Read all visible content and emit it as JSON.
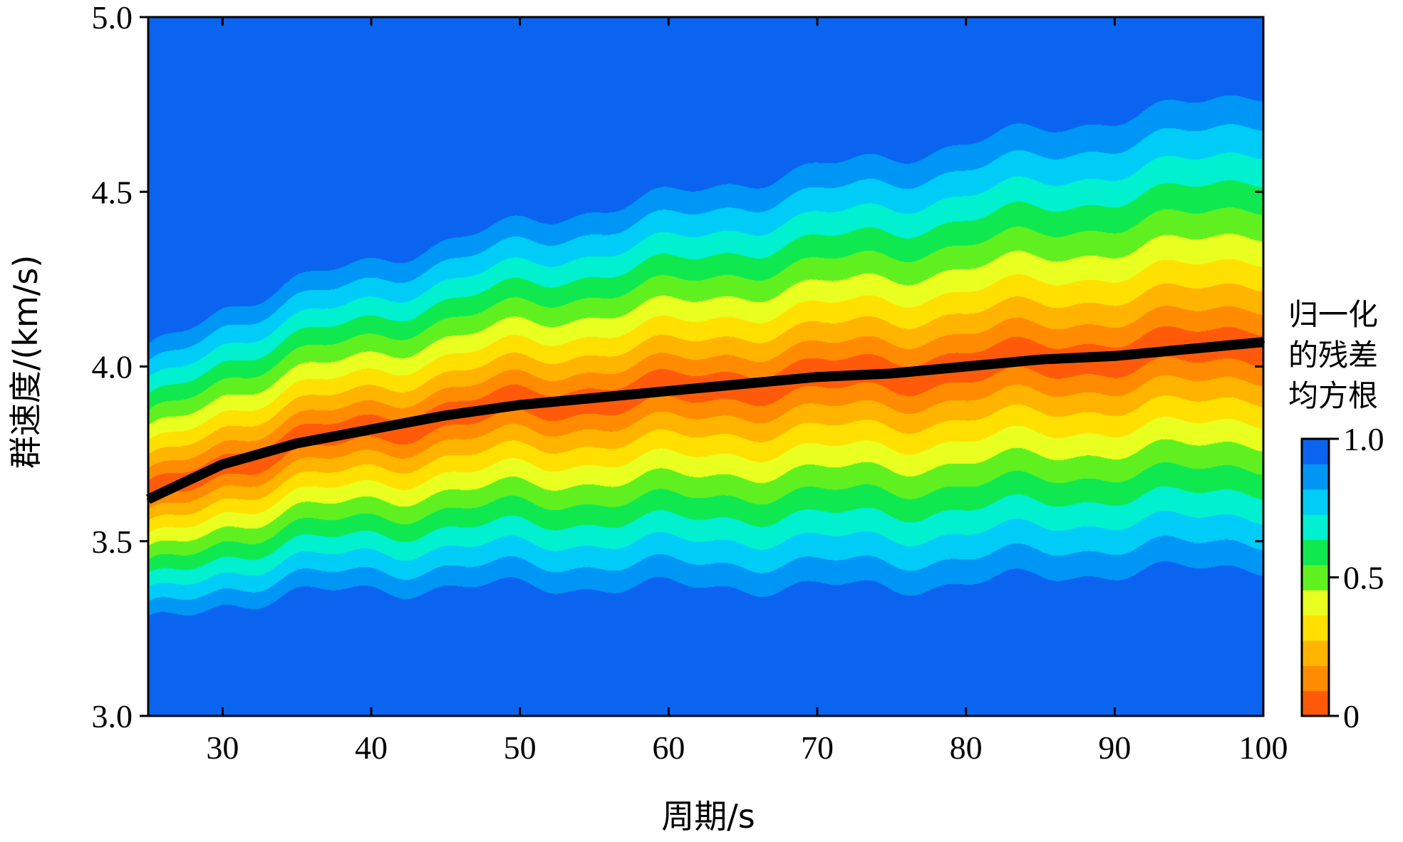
{
  "chart_data": {
    "type": "heatmap",
    "title": "",
    "xlabel": "周期/s",
    "ylabel": "群速度/(km/s)",
    "xlim": [
      25,
      100
    ],
    "ylim": [
      3.0,
      5.0
    ],
    "xticks": [
      30,
      40,
      50,
      60,
      70,
      80,
      90,
      100
    ],
    "xtick_labels": [
      "30",
      "40",
      "50",
      "60",
      "70",
      "80",
      "90",
      "100"
    ],
    "yticks": [
      3.0,
      3.5,
      4.0,
      4.5,
      5.0
    ],
    "ytick_labels": [
      "3.0",
      "3.5",
      "4.0",
      "4.5",
      "5.0"
    ],
    "colorbar": {
      "title_lines": [
        "归一化",
        "的残差",
        "均方根"
      ],
      "ticks": [
        0,
        0.5,
        1.0
      ],
      "tick_labels": [
        "0",
        "0.5",
        "1.0"
      ],
      "levels": 10,
      "colors": [
        "#ff5a0a",
        "#ff8c00",
        "#ffb400",
        "#ffe000",
        "#e8ff20",
        "#60f020",
        "#10e850",
        "#00f0d0",
        "#00ccf8",
        "#0096f5",
        "#0a64f0"
      ]
    },
    "dispersion_curve": {
      "period_s": [
        25,
        30,
        35,
        40,
        45,
        50,
        55,
        60,
        65,
        70,
        75,
        80,
        85,
        90,
        95,
        100
      ],
      "group_velocity_kms": [
        3.62,
        3.72,
        3.78,
        3.82,
        3.86,
        3.89,
        3.91,
        3.93,
        3.95,
        3.97,
        3.98,
        4.0,
        4.02,
        4.03,
        4.05,
        4.07
      ],
      "color": "#000000"
    },
    "misfit_field": {
      "description_of_axes": "x: period (s), y: group velocity (km/s), value: normalized RMS residual 0-1",
      "min_center_follows_dispersion_curve": true,
      "upper_half_width_kms": {
        "period_s": [
          25,
          30,
          40,
          50,
          60,
          70,
          80,
          90,
          100
        ],
        "value": [
          0.42,
          0.45,
          0.48,
          0.52,
          0.56,
          0.6,
          0.64,
          0.68,
          0.72
        ]
      },
      "lower_half_width_kms": {
        "period_s": [
          25,
          30,
          40,
          50,
          60,
          70,
          80,
          90,
          100
        ],
        "value": [
          0.36,
          0.4,
          0.46,
          0.52,
          0.56,
          0.6,
          0.62,
          0.62,
          0.64
        ]
      }
    }
  }
}
